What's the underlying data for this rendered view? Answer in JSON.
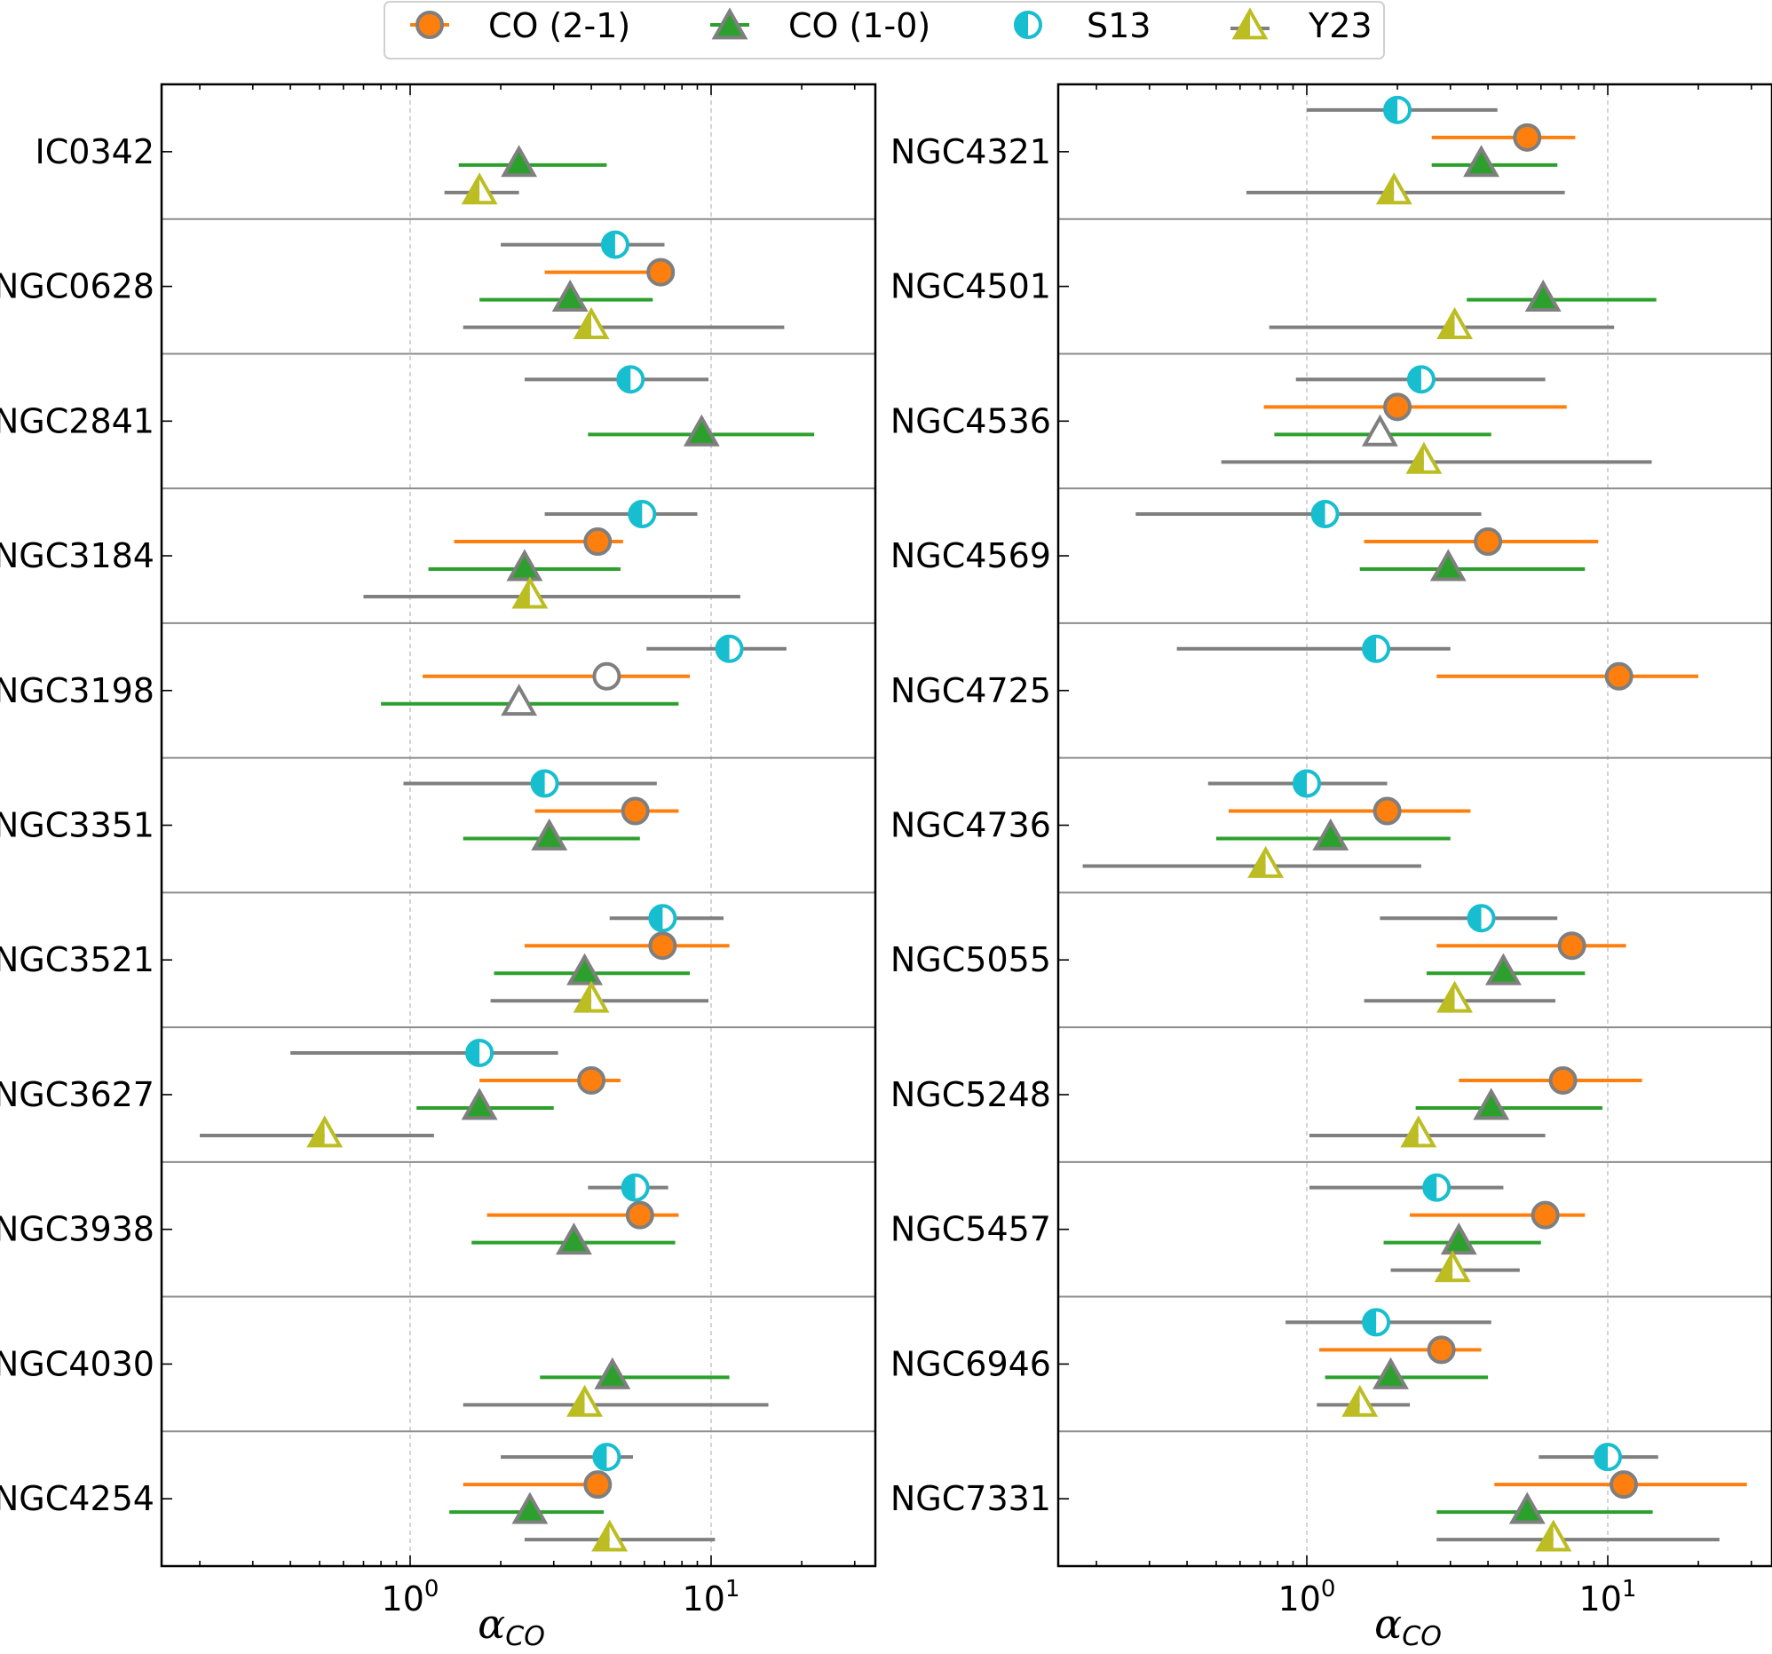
{
  "chart_data": {
    "type": "errorbar-forest",
    "xscale": "log",
    "xlabel": "α",
    "xlabel_subscript": "CO",
    "xtick_labels": [
      {
        "value": 1,
        "base": "10",
        "exponent": "0"
      },
      {
        "value": 10,
        "base": "10",
        "exponent": "1"
      }
    ],
    "xlim": [
      0.155,
      32
    ],
    "legend": {
      "placement": "top-center",
      "entries": [
        {
          "key": "co21",
          "label": "CO (2-1)"
        },
        {
          "key": "co10",
          "label": "CO (1-0)"
        },
        {
          "key": "s13",
          "label": "S13"
        },
        {
          "key": "y23",
          "label": "Y23"
        }
      ]
    },
    "colors": {
      "co21": "#ff7f0e",
      "co10": "#2ca02c",
      "s13": "#17becf",
      "y23": "#bcbd22",
      "marker_edge": "#7f7f7f",
      "errbar_gray": "#7f7f7f"
    },
    "panels": [
      {
        "id": "left",
        "galaxies": [
          {
            "name": "IC0342",
            "co10": {
              "v": 2.3,
              "lo": 1.45,
              "hi": 4.5
            },
            "y23": {
              "v": 1.7,
              "lo": 1.3,
              "hi": 2.3
            }
          },
          {
            "name": "NGC0628",
            "s13": {
              "v": 4.8,
              "lo": 2.0,
              "hi": 7.0
            },
            "co21": {
              "v": 6.8,
              "lo": 2.8,
              "hi": 6.8
            },
            "co10": {
              "v": 3.4,
              "lo": 1.7,
              "hi": 6.4
            },
            "y23": {
              "v": 4.0,
              "lo": 1.5,
              "hi": 17.5
            }
          },
          {
            "name": "NGC2841",
            "s13": {
              "v": 5.4,
              "lo": 2.4,
              "hi": 9.8
            },
            "co10": {
              "v": 9.3,
              "lo": 3.9,
              "hi": 22.0
            }
          },
          {
            "name": "NGC3184",
            "s13": {
              "v": 5.9,
              "lo": 2.8,
              "hi": 9.0
            },
            "co21": {
              "v": 4.2,
              "lo": 1.4,
              "hi": 5.1
            },
            "co10": {
              "v": 2.4,
              "lo": 1.15,
              "hi": 5.0
            },
            "y23": {
              "v": 2.5,
              "lo": 0.7,
              "hi": 12.5
            }
          },
          {
            "name": "NGC3198",
            "s13": {
              "v": 11.5,
              "lo": 6.1,
              "hi": 17.8
            },
            "co21": {
              "v": 4.5,
              "lo": 1.1,
              "hi": 8.5
            },
            "co21_open": true,
            "co10": {
              "v": 2.3,
              "lo": 0.8,
              "hi": 7.8
            },
            "co10_open": true
          },
          {
            "name": "NGC3351",
            "s13": {
              "v": 2.8,
              "lo": 0.95,
              "hi": 6.6
            },
            "co21": {
              "v": 5.6,
              "lo": 2.6,
              "hi": 7.8
            },
            "co10": {
              "v": 2.9,
              "lo": 1.5,
              "hi": 5.8
            }
          },
          {
            "name": "NGC3521",
            "s13": {
              "v": 6.9,
              "lo": 4.6,
              "hi": 11.0
            },
            "co21": {
              "v": 6.9,
              "lo": 2.4,
              "hi": 11.5
            },
            "co10": {
              "v": 3.8,
              "lo": 1.9,
              "hi": 8.5
            },
            "y23": {
              "v": 4.0,
              "lo": 1.85,
              "hi": 9.8
            }
          },
          {
            "name": "NGC3627",
            "s13": {
              "v": 1.7,
              "lo": 0.4,
              "hi": 3.1
            },
            "co21": {
              "v": 4.0,
              "lo": 1.7,
              "hi": 5.0
            },
            "co10": {
              "v": 1.7,
              "lo": 1.05,
              "hi": 3.0
            },
            "y23": {
              "v": 0.52,
              "lo": 0.2,
              "hi": 1.2
            }
          },
          {
            "name": "NGC3938",
            "s13": {
              "v": 5.6,
              "lo": 3.9,
              "hi": 7.2
            },
            "co21": {
              "v": 5.8,
              "lo": 1.8,
              "hi": 7.8
            },
            "co10": {
              "v": 3.5,
              "lo": 1.6,
              "hi": 7.6
            }
          },
          {
            "name": "NGC4030",
            "co10": {
              "v": 4.7,
              "lo": 2.7,
              "hi": 11.5
            },
            "y23": {
              "v": 3.8,
              "lo": 1.5,
              "hi": 15.5
            }
          },
          {
            "name": "NGC4254",
            "s13": {
              "v": 4.5,
              "lo": 2.0,
              "hi": 5.5
            },
            "co21": {
              "v": 4.2,
              "lo": 1.5,
              "hi": 4.2
            },
            "co10": {
              "v": 2.5,
              "lo": 1.35,
              "hi": 4.4
            },
            "y23": {
              "v": 4.6,
              "lo": 2.4,
              "hi": 10.3
            }
          }
        ]
      },
      {
        "id": "right",
        "galaxies": [
          {
            "name": "NGC4321",
            "s13": {
              "v": 2.0,
              "lo": 1.0,
              "hi": 4.3
            },
            "co21": {
              "v": 5.4,
              "lo": 2.6,
              "hi": 7.8
            },
            "co10": {
              "v": 3.8,
              "lo": 2.6,
              "hi": 6.8
            },
            "y23": {
              "v": 1.95,
              "lo": 0.63,
              "hi": 7.2
            }
          },
          {
            "name": "NGC4501",
            "co10": {
              "v": 6.1,
              "lo": 3.4,
              "hi": 14.5
            },
            "y23": {
              "v": 3.1,
              "lo": 0.75,
              "hi": 10.5
            }
          },
          {
            "name": "NGC4536",
            "s13": {
              "v": 2.4,
              "lo": 0.92,
              "hi": 6.2
            },
            "co21": {
              "v": 2.0,
              "lo": 0.72,
              "hi": 7.3
            },
            "co10": {
              "v": 1.75,
              "lo": 0.78,
              "hi": 4.1
            },
            "co10_open": true,
            "y23": {
              "v": 2.45,
              "lo": 0.52,
              "hi": 14.0
            }
          },
          {
            "name": "NGC4569",
            "s13": {
              "v": 1.15,
              "lo": 0.27,
              "hi": 3.8
            },
            "co21": {
              "v": 4.0,
              "lo": 1.55,
              "hi": 9.3
            },
            "co10": {
              "v": 2.95,
              "lo": 1.5,
              "hi": 8.4
            }
          },
          {
            "name": "NGC4725",
            "s13": {
              "v": 1.7,
              "lo": 0.37,
              "hi": 3.0
            },
            "co21": {
              "v": 10.9,
              "lo": 2.7,
              "hi": 20.0
            }
          },
          {
            "name": "NGC4736",
            "s13": {
              "v": 1.0,
              "lo": 0.47,
              "hi": 1.85
            },
            "co21": {
              "v": 1.85,
              "lo": 0.55,
              "hi": 3.5
            },
            "co10": {
              "v": 1.2,
              "lo": 0.5,
              "hi": 3.0
            },
            "y23": {
              "v": 0.73,
              "lo": 0.18,
              "hi": 2.4
            }
          },
          {
            "name": "NGC5055",
            "s13": {
              "v": 3.8,
              "lo": 1.75,
              "hi": 6.8
            },
            "co21": {
              "v": 7.6,
              "lo": 2.7,
              "hi": 11.5
            },
            "co10": {
              "v": 4.5,
              "lo": 2.5,
              "hi": 8.4
            },
            "y23": {
              "v": 3.1,
              "lo": 1.55,
              "hi": 6.7
            }
          },
          {
            "name": "NGC5248",
            "co21": {
              "v": 7.1,
              "lo": 3.2,
              "hi": 13.0
            },
            "co10": {
              "v": 4.1,
              "lo": 2.3,
              "hi": 9.6
            },
            "y23": {
              "v": 2.35,
              "lo": 1.02,
              "hi": 6.2
            }
          },
          {
            "name": "NGC5457",
            "s13": {
              "v": 2.7,
              "lo": 1.02,
              "hi": 4.5
            },
            "co21": {
              "v": 6.2,
              "lo": 2.2,
              "hi": 8.4
            },
            "co10": {
              "v": 3.2,
              "lo": 1.8,
              "hi": 6.0
            },
            "y23": {
              "v": 3.05,
              "lo": 1.9,
              "hi": 5.1
            }
          },
          {
            "name": "NGC6946",
            "s13": {
              "v": 1.7,
              "lo": 0.85,
              "hi": 4.1
            },
            "co21": {
              "v": 2.8,
              "lo": 1.1,
              "hi": 3.8
            },
            "co10": {
              "v": 1.9,
              "lo": 1.15,
              "hi": 4.0
            },
            "y23": {
              "v": 1.5,
              "lo": 1.08,
              "hi": 2.2
            }
          },
          {
            "name": "NGC7331",
            "s13": {
              "v": 10.0,
              "lo": 5.9,
              "hi": 14.7
            },
            "co21": {
              "v": 11.3,
              "lo": 4.2,
              "hi": 29.0
            },
            "co10": {
              "v": 5.4,
              "lo": 2.7,
              "hi": 14.1
            },
            "y23": {
              "v": 6.6,
              "lo": 2.7,
              "hi": 23.5
            }
          }
        ]
      }
    ]
  }
}
